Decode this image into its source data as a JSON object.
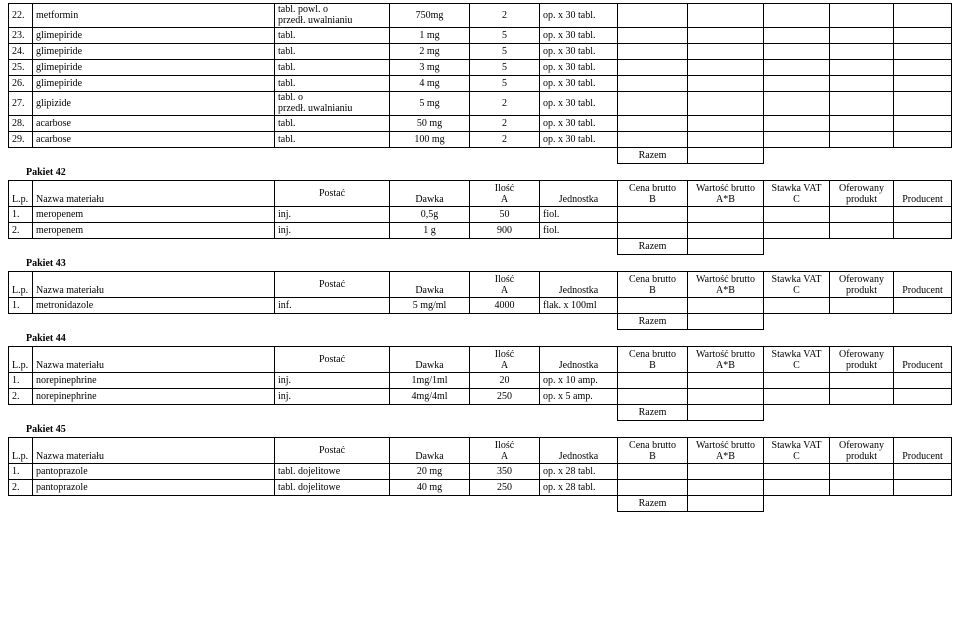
{
  "labels": {
    "razem": "Razem",
    "lp": "L.p.",
    "nazwa": "Nazwa materiału",
    "postac": "Postać",
    "dawka": "Dawka",
    "ilosc": "Ilość",
    "a": "A",
    "jednostka": "Jednostka",
    "cena_brutto": "Cena brutto",
    "b": "B",
    "wartosc_brutto": "Wartość brutto",
    "ab": "A*B",
    "stawka_vat": "Stawka VAT",
    "c": "C",
    "oferowany": "Oferowany",
    "produkt": "produkt",
    "producent": "Producent"
  },
  "top_rows": [
    {
      "lp": "22.",
      "name": "metformin",
      "postac": "tabl. powl. o przedł. uwalnianiu",
      "dawka": "750mg",
      "ilosc": "2",
      "jed": "op. x 30 tabl."
    },
    {
      "lp": "23.",
      "name": "glimepiride",
      "postac": "tabl.",
      "dawka": "1 mg",
      "ilosc": "5",
      "jed": "op. x 30 tabl."
    },
    {
      "lp": "24.",
      "name": "glimepiride",
      "postac": "tabl.",
      "dawka": "2 mg",
      "ilosc": "5",
      "jed": "op. x 30 tabl."
    },
    {
      "lp": "25.",
      "name": "glimepiride",
      "postac": "tabl.",
      "dawka": "3 mg",
      "ilosc": "5",
      "jed": "op. x 30 tabl."
    },
    {
      "lp": "26.",
      "name": "glimepiride",
      "postac": "tabl.",
      "dawka": "4 mg",
      "ilosc": "5",
      "jed": "op. x 30 tabl."
    },
    {
      "lp": "27.",
      "name": "glipizide",
      "postac": "tabl. o przedł. uwalnianiu",
      "dawka": "5 mg",
      "ilosc": "2",
      "jed": "op. x 30 tabl."
    },
    {
      "lp": "28.",
      "name": "acarbose",
      "postac": "tabl.",
      "dawka": "50 mg",
      "ilosc": "2",
      "jed": "op. x 30 tabl."
    },
    {
      "lp": "29.",
      "name": "acarbose",
      "postac": "tabl.",
      "dawka": "100 mg",
      "ilosc": "2",
      "jed": "op. x 30 tabl."
    }
  ],
  "sections": [
    {
      "title": "Pakiet 42",
      "rows": [
        {
          "lp": "1.",
          "name": "meropenem",
          "postac": "inj.",
          "dawka": "0,5g",
          "ilosc": "50",
          "jed": "fiol."
        },
        {
          "lp": "2.",
          "name": "meropenem",
          "postac": "inj.",
          "dawka": "1 g",
          "ilosc": "900",
          "jed": "fiol."
        }
      ]
    },
    {
      "title": "Pakiet 43",
      "rows": [
        {
          "lp": "1.",
          "name": "metronidazole",
          "postac": "inf.",
          "dawka": "5 mg/ml",
          "ilosc": "4000",
          "jed": "flak. x 100ml"
        }
      ]
    },
    {
      "title": "Pakiet 44",
      "rows": [
        {
          "lp": "1.",
          "name": "norepinephrine",
          "postac": "inj.",
          "dawka": "1mg/1ml",
          "ilosc": "20",
          "jed": "op. x 10 amp."
        },
        {
          "lp": "2.",
          "name": "norepinephrine",
          "postac": "inj.",
          "dawka": "4mg/4ml",
          "ilosc": "250",
          "jed": "op. x 5 amp."
        }
      ]
    },
    {
      "title": "Pakiet 45",
      "rows": [
        {
          "lp": "1.",
          "name": "pantoprazole",
          "postac": "tabl. dojelitowe",
          "dawka": "20 mg",
          "ilosc": "350",
          "jed": "op. x 28 tabl."
        },
        {
          "lp": "2.",
          "name": "pantoprazole",
          "postac": "tabl. dojelitowe",
          "dawka": "40 mg",
          "ilosc": "250",
          "jed": "op. x 28 tabl."
        }
      ]
    }
  ]
}
